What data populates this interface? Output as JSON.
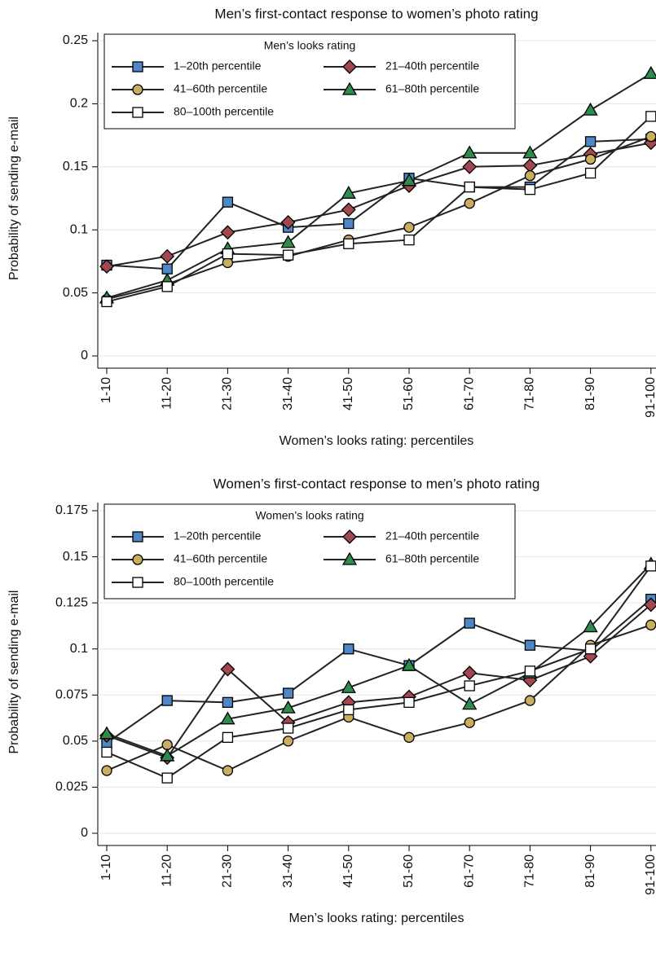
{
  "chart_data": [
    {
      "type": "line",
      "title": "Men’s first-contact response to women’s photo rating",
      "x_label": "Women’s looks rating: percentiles",
      "y_label": "Probability of sending e-mail",
      "legend_title": "Men’s looks rating",
      "categories": [
        "1-10",
        "11-20",
        "21-30",
        "31-40",
        "41-50",
        "51-60",
        "61-70",
        "71-80",
        "81-90",
        "91-100"
      ],
      "ylim": [
        0,
        0.25
      ],
      "yticks": [
        0,
        0.05,
        0.1,
        0.15,
        0.2,
        0.25
      ],
      "grid": true,
      "series": [
        {
          "name": "1–20th percentile",
          "color": "#4f86c6",
          "marker": "square",
          "values": [
            0.072,
            0.069,
            0.122,
            0.102,
            0.105,
            0.141,
            0.134,
            0.134,
            0.17,
            0.172
          ]
        },
        {
          "name": "21–40th percentile",
          "color": "#a3474f",
          "marker": "diamond",
          "values": [
            0.071,
            0.079,
            0.098,
            0.106,
            0.116,
            0.135,
            0.15,
            0.151,
            0.16,
            0.169
          ]
        },
        {
          "name": "41–60th percentile",
          "color": "#c9ae5f",
          "marker": "circle",
          "values": [
            0.045,
            0.057,
            0.074,
            0.079,
            0.092,
            0.102,
            0.121,
            0.143,
            0.156,
            0.174
          ]
        },
        {
          "name": "61–80th percentile",
          "color": "#2e8b4e",
          "marker": "triangle",
          "values": [
            0.046,
            0.06,
            0.085,
            0.09,
            0.129,
            0.139,
            0.161,
            0.161,
            0.195,
            0.224
          ]
        },
        {
          "name": "80–100th percentile",
          "color": "#ffffff",
          "marker": "square",
          "values": [
            0.043,
            0.055,
            0.081,
            0.08,
            0.089,
            0.092,
            0.134,
            0.132,
            0.145,
            0.19
          ]
        }
      ]
    },
    {
      "type": "line",
      "title": "Women’s first-contact response to men’s photo rating",
      "x_label": "Men’s looks rating: percentiles",
      "y_label": "Probability of sending e-mail",
      "legend_title": "Women’s looks rating",
      "categories": [
        "1-10",
        "11-20",
        "21-30",
        "31-40",
        "41-50",
        "51-60",
        "61-70",
        "71-80",
        "81-90",
        "91-100"
      ],
      "ylim": [
        0,
        0.175
      ],
      "yticks": [
        0,
        0.025,
        0.05,
        0.075,
        0.1,
        0.125,
        0.15,
        0.175
      ],
      "grid": true,
      "series": [
        {
          "name": "1–20th percentile",
          "color": "#4f86c6",
          "marker": "square",
          "values": [
            0.049,
            0.072,
            0.071,
            0.076,
            0.1,
            0.091,
            0.114,
            0.102,
            0.099,
            0.127
          ]
        },
        {
          "name": "21–40th percentile",
          "color": "#a3474f",
          "marker": "diamond",
          "values": [
            0.053,
            0.041,
            0.089,
            0.06,
            0.071,
            0.074,
            0.087,
            0.083,
            0.096,
            0.124
          ]
        },
        {
          "name": "41–60th percentile",
          "color": "#c9ae5f",
          "marker": "circle",
          "values": [
            0.034,
            0.048,
            0.034,
            0.05,
            0.063,
            0.052,
            0.06,
            0.072,
            0.102,
            0.113
          ]
        },
        {
          "name": "61–80th percentile",
          "color": "#2e8b4e",
          "marker": "triangle",
          "values": [
            0.054,
            0.042,
            0.062,
            0.068,
            0.079,
            0.091,
            0.07,
            0.087,
            0.112,
            0.146
          ]
        },
        {
          "name": "80–100th percentile",
          "color": "#ffffff",
          "marker": "square",
          "values": [
            0.044,
            0.03,
            0.052,
            0.057,
            0.067,
            0.071,
            0.08,
            0.088,
            0.1,
            0.145
          ]
        }
      ]
    }
  ]
}
